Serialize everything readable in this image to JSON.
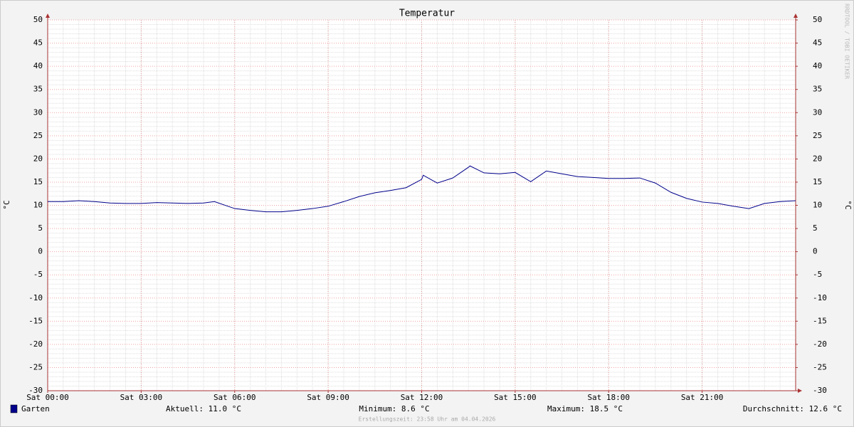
{
  "chart_data": {
    "type": "line",
    "title": "Temperatur",
    "y_label": "°C",
    "watermark": "RRDTOOL / TOBI OETIKER",
    "footer": "Erstellungszeit: 23:58 Uhr am 04.04.2026",
    "xlim": [
      0,
      24
    ],
    "xticks": [
      {
        "value": 0,
        "label": "Sat 00:00"
      },
      {
        "value": 3,
        "label": "Sat 03:00"
      },
      {
        "value": 6,
        "label": "Sat 06:00"
      },
      {
        "value": 9,
        "label": "Sat 09:00"
      },
      {
        "value": 12,
        "label": "Sat 12:00"
      },
      {
        "value": 15,
        "label": "Sat 15:00"
      },
      {
        "value": 18,
        "label": "Sat 18:00"
      },
      {
        "value": 21,
        "label": "Sat 21:00"
      }
    ],
    "ylim": [
      -30,
      50
    ],
    "yticks": [
      -30,
      -25,
      -20,
      -15,
      -10,
      -5,
      0,
      5,
      10,
      15,
      20,
      25,
      30,
      35,
      40,
      45,
      50
    ],
    "y2lim": [
      -30,
      50
    ],
    "y2ticks": [
      -30,
      -25,
      -20,
      -15,
      -10,
      -5,
      0,
      5,
      10,
      15,
      20,
      25,
      30,
      35,
      40,
      45,
      50
    ],
    "grid": true,
    "x": [
      0,
      0.5,
      1,
      1.5,
      2,
      2.5,
      3,
      3.5,
      4,
      4.5,
      5,
      5.35,
      6,
      6.5,
      7,
      7.5,
      8,
      8.5,
      9,
      9.5,
      10,
      10.5,
      11,
      11.5,
      12,
      12.05,
      12.5,
      13,
      13.5,
      13.55,
      14,
      14.5,
      15,
      15.5,
      16,
      16.5,
      17,
      17.5,
      18,
      18.5,
      19,
      19.5,
      20,
      20.5,
      21,
      21.5,
      22,
      22.5,
      23,
      23.5,
      24
    ],
    "series": [
      {
        "name": "Garten",
        "color": "#00008b",
        "values": [
          10.8,
          10.8,
          11.0,
          10.8,
          10.5,
          10.4,
          10.4,
          10.6,
          10.5,
          10.4,
          10.5,
          10.8,
          9.3,
          8.9,
          8.6,
          8.6,
          8.9,
          9.3,
          9.8,
          10.8,
          11.9,
          12.7,
          13.2,
          13.8,
          15.6,
          16.5,
          14.8,
          15.9,
          18.2,
          18.5,
          17.0,
          16.8,
          17.1,
          15.1,
          17.4,
          16.8,
          16.2,
          16.0,
          15.8,
          15.8,
          15.9,
          14.8,
          12.8,
          11.5,
          10.7,
          10.4,
          9.8,
          9.3,
          10.4,
          10.8,
          11.0
        ]
      }
    ],
    "stats": [
      "Aktuell: 11.0 °C",
      "Minimum: 8.6 °C",
      "Maximum: 18.5 °C",
      "Durchschnitt: 12.6 °C"
    ]
  }
}
